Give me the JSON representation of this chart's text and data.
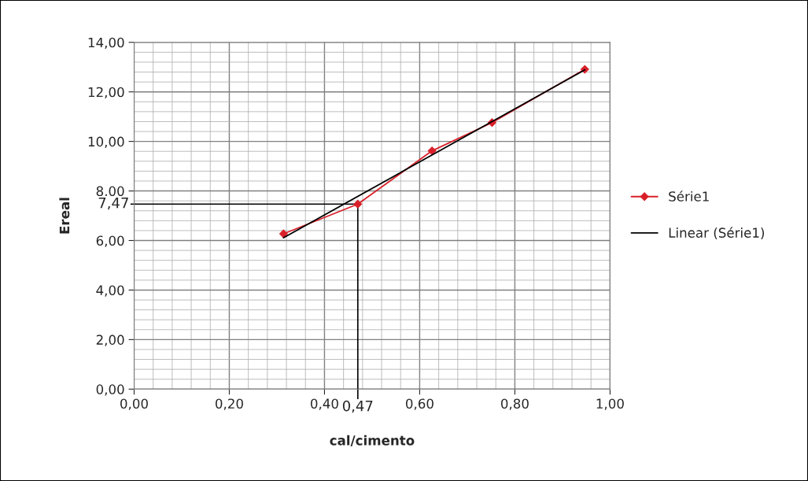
{
  "chart_data": {
    "type": "line",
    "xlabel": "cal/cimento",
    "ylabel": "Ereal",
    "series": [
      {
        "name": "Série1",
        "color": "#d9202a",
        "x": [
          0.314,
          0.47,
          0.626,
          0.752,
          0.947
        ],
        "values": [
          6.27,
          7.47,
          9.62,
          10.76,
          12.91
        ],
        "marker": "diamond"
      },
      {
        "name": "Linear (Série1)",
        "color": "#000000",
        "x": [
          0.314,
          0.947
        ],
        "values": [
          6.11,
          12.89
        ]
      }
    ],
    "xlim": [
      0,
      1
    ],
    "ylim": [
      0,
      14
    ],
    "xticks": [
      {
        "value": 0,
        "label": "0,00"
      },
      {
        "value": 0.2,
        "label": "0,20"
      },
      {
        "value": 0.4,
        "label": "0,40"
      },
      {
        "value": 0.6,
        "label": "0,60"
      },
      {
        "value": 0.8,
        "label": "0,80"
      },
      {
        "value": 1,
        "label": "1,00"
      }
    ],
    "yticks": [
      {
        "value": 0,
        "label": "0,00"
      },
      {
        "value": 2,
        "label": "2,00"
      },
      {
        "value": 4,
        "label": "4,00"
      },
      {
        "value": 6,
        "label": "6,00"
      },
      {
        "value": 8,
        "label": "8,00"
      },
      {
        "value": 10,
        "label": "10,00"
      },
      {
        "value": 12,
        "label": "12,00"
      },
      {
        "value": 14,
        "label": "14,00"
      }
    ],
    "ref_lines": [
      {
        "axis": "y",
        "value": 7.47,
        "label": "7,47",
        "color": "#000000"
      },
      {
        "axis": "x",
        "value": 0.47,
        "label": "0,47",
        "color": "#000000"
      }
    ],
    "grid": true,
    "legend": "right"
  }
}
